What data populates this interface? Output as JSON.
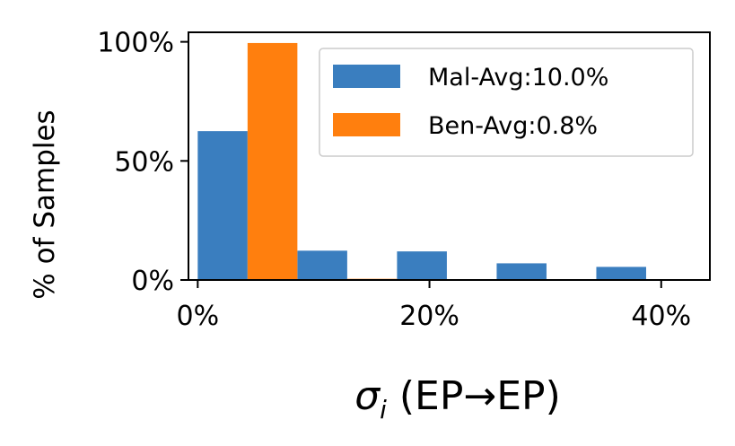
{
  "chart_data": {
    "type": "bar",
    "xlabel_symbol": "σ",
    "xlabel_subscript": "i",
    "xlabel_rest": " (EP→EP)",
    "ylabel": "% of Samples",
    "x_ticks": [
      {
        "value": 0,
        "label": "0%"
      },
      {
        "value": 20,
        "label": "20%"
      },
      {
        "value": 40,
        "label": "40%"
      }
    ],
    "y_ticks": [
      {
        "value": 0,
        "label": "0%"
      },
      {
        "value": 50,
        "label": "50%"
      },
      {
        "value": 100,
        "label": "100%"
      }
    ],
    "xlim": [
      -0.8,
      44.2
    ],
    "ylim": [
      0,
      104
    ],
    "bin_width": 8.6,
    "bins": [
      0.0,
      8.6,
      17.2,
      25.8,
      34.4
    ],
    "series": [
      {
        "name": "Mal-Avg:10.0%",
        "color": "#3a7ebf",
        "values": [
          62.5,
          12.3,
          12.0,
          7.0,
          5.5
        ]
      },
      {
        "name": "Ben-Avg:0.8%",
        "color": "#ff7f0e",
        "values": [
          99.5,
          0.5,
          0,
          0,
          0
        ]
      }
    ],
    "legend_position": "top-right",
    "grid": false
  }
}
